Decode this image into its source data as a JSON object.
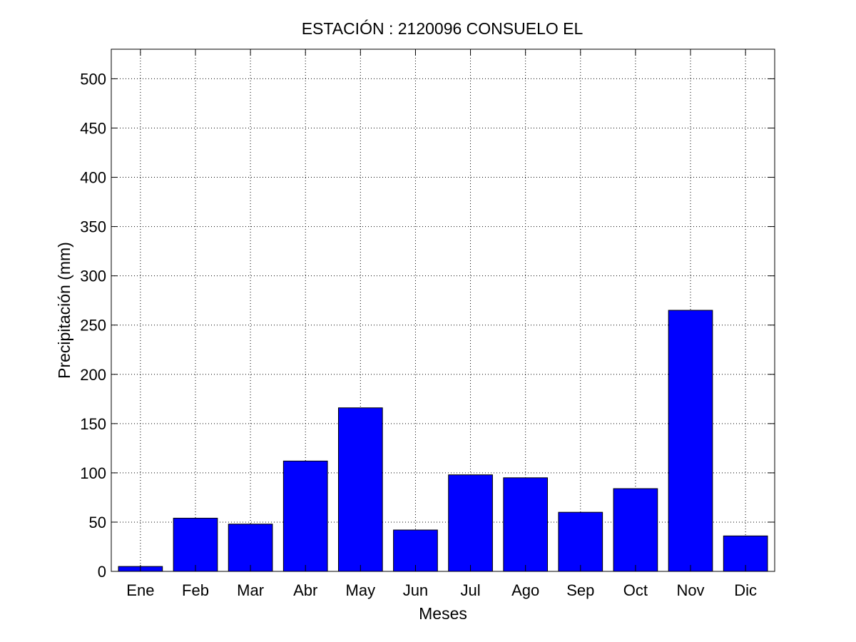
{
  "chart_data": {
    "type": "bar",
    "title": "ESTACIÓN :  2120096  CONSUELO EL",
    "xlabel": "Meses",
    "ylabel": "Precipitación (mm)",
    "categories": [
      "Ene",
      "Feb",
      "Mar",
      "Abr",
      "May",
      "Jun",
      "Jul",
      "Ago",
      "Sep",
      "Oct",
      "Nov",
      "Dic"
    ],
    "values": [
      5,
      54,
      48,
      112,
      166,
      42,
      98,
      95,
      60,
      84,
      265,
      36
    ],
    "ylim": [
      0,
      530
    ],
    "yticks": [
      0,
      50,
      100,
      150,
      200,
      250,
      300,
      350,
      400,
      450,
      500
    ],
    "grid": true,
    "bar_color": "#0000ff",
    "bar_edge_color": "#000000",
    "grid_color": "#000000"
  }
}
